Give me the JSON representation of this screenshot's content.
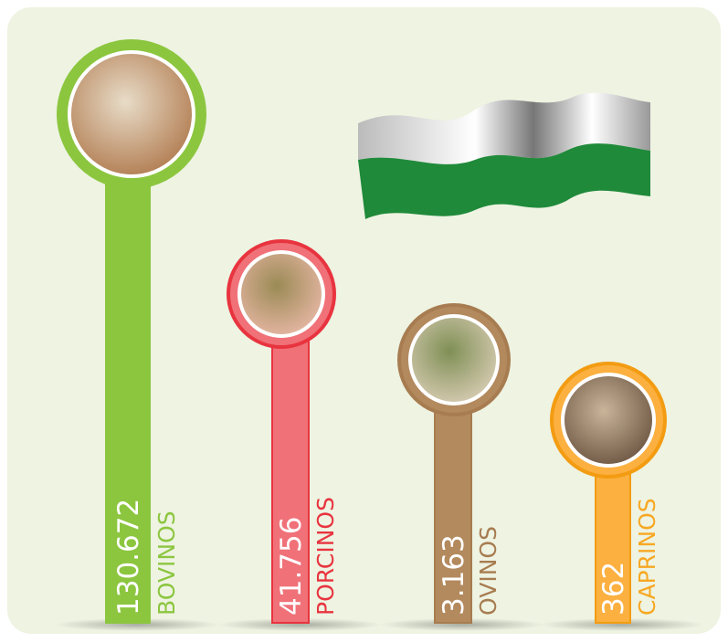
{
  "items": [
    {
      "value": "130.672",
      "label": "BOVINOS"
    },
    {
      "value": "41.756",
      "label": "PORCINOS"
    },
    {
      "value": "3.163",
      "label": "OVINOS"
    },
    {
      "value": "362",
      "label": "CAPRINOS"
    }
  ]
}
